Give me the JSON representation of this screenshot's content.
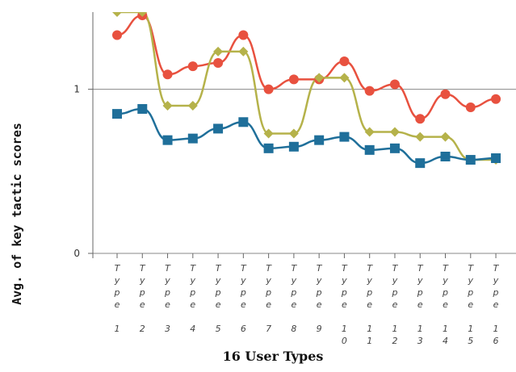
{
  "chart_data": {
    "type": "line",
    "xlabel": "16 User Types",
    "ylabel": "Avg. of key tactic scores",
    "categories": [
      "Type 1",
      "Type 2",
      "Type 3",
      "Type 4",
      "Type 5",
      "Type 6",
      "Type 7",
      "Type 8",
      "Type 9",
      "Type 10",
      "Type 11",
      "Type 12",
      "Type 13",
      "Type 14",
      "Type 15",
      "Type 16"
    ],
    "ylim": [
      0,
      1.47
    ],
    "yticks": [
      0,
      1
    ],
    "grid": true,
    "series": [
      {
        "color": "#e8513f",
        "marker": "circle",
        "values": [
          1.33,
          1.45,
          1.09,
          1.14,
          1.16,
          1.33,
          1.0,
          1.06,
          1.06,
          1.17,
          0.99,
          1.03,
          0.82,
          0.97,
          0.89,
          0.94
        ]
      },
      {
        "color": "#b5b24a",
        "marker": "diamond",
        "values": [
          1.47,
          1.47,
          0.9,
          0.9,
          1.23,
          1.23,
          0.73,
          0.73,
          1.07,
          1.07,
          0.74,
          0.74,
          0.71,
          0.71,
          0.57,
          0.57
        ]
      },
      {
        "color": "#1f6f9a",
        "marker": "square",
        "values": [
          0.85,
          0.88,
          0.69,
          0.7,
          0.76,
          0.8,
          0.64,
          0.65,
          0.69,
          0.71,
          0.63,
          0.64,
          0.55,
          0.59,
          0.57,
          0.58
        ]
      }
    ]
  }
}
